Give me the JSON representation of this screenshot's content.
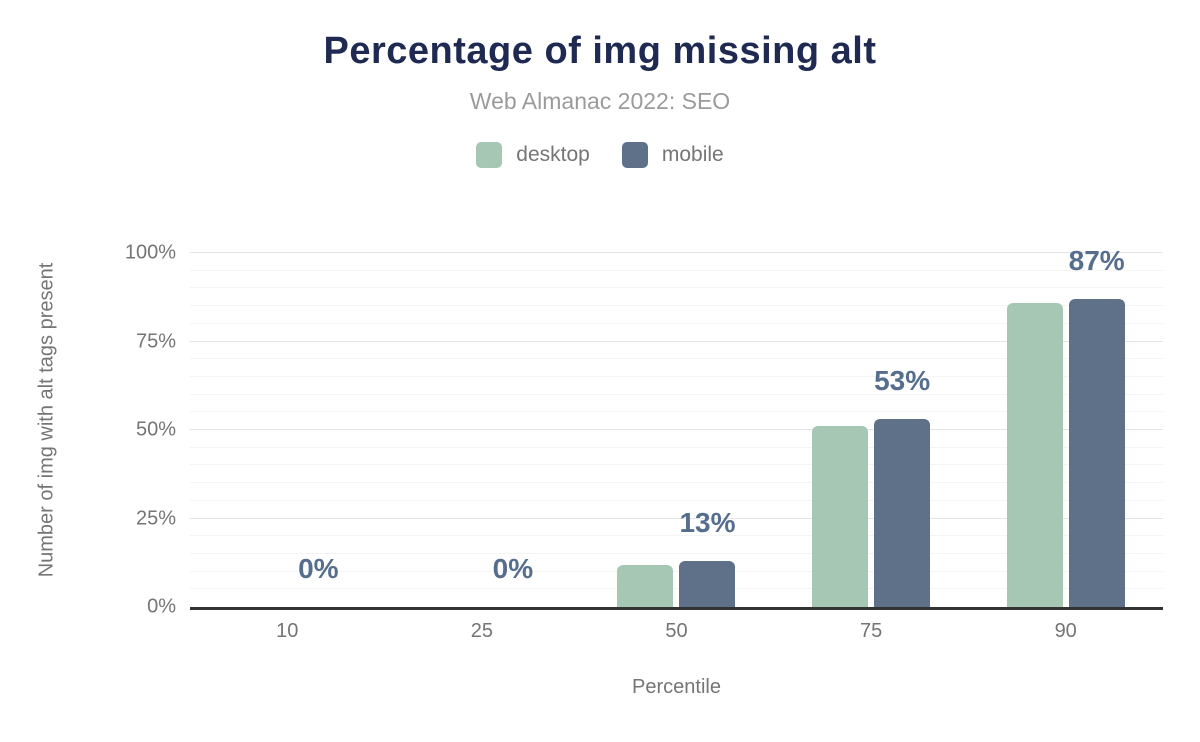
{
  "chart_data": {
    "type": "bar",
    "title": "Percentage of img missing alt",
    "subtitle": "Web Almanac 2022: SEO",
    "xlabel": "Percentile",
    "ylabel": "Number of img with alt tags present",
    "categories": [
      "10",
      "25",
      "50",
      "75",
      "90"
    ],
    "series": [
      {
        "name": "desktop",
        "color": "#a7c7b5",
        "values": [
          0,
          0,
          12,
          51,
          86
        ]
      },
      {
        "name": "mobile",
        "color": "#5f7089",
        "values": [
          0,
          0,
          13,
          53,
          87
        ]
      }
    ],
    "data_labels": [
      "0%",
      "0%",
      "13%",
      "53%",
      "87%"
    ],
    "yticks": [
      {
        "value": 0,
        "label": "0%"
      },
      {
        "value": 25,
        "label": "25%"
      },
      {
        "value": 50,
        "label": "50%"
      },
      {
        "value": 75,
        "label": "75%"
      },
      {
        "value": 100,
        "label": "100%"
      }
    ],
    "ylim": [
      0,
      100
    ],
    "grid": {
      "minor_step": 5,
      "major_step": 25,
      "orientation": "horizontal"
    },
    "legend_position": "top",
    "colors": {
      "title": "#1e2a52",
      "subtitle": "#9b9b9b",
      "axis_text": "#757575",
      "data_label": "#566e8e",
      "axis_line": "#333333",
      "gridline_minor": "#f4f4f4",
      "gridline_major": "#e4e4e4"
    }
  }
}
